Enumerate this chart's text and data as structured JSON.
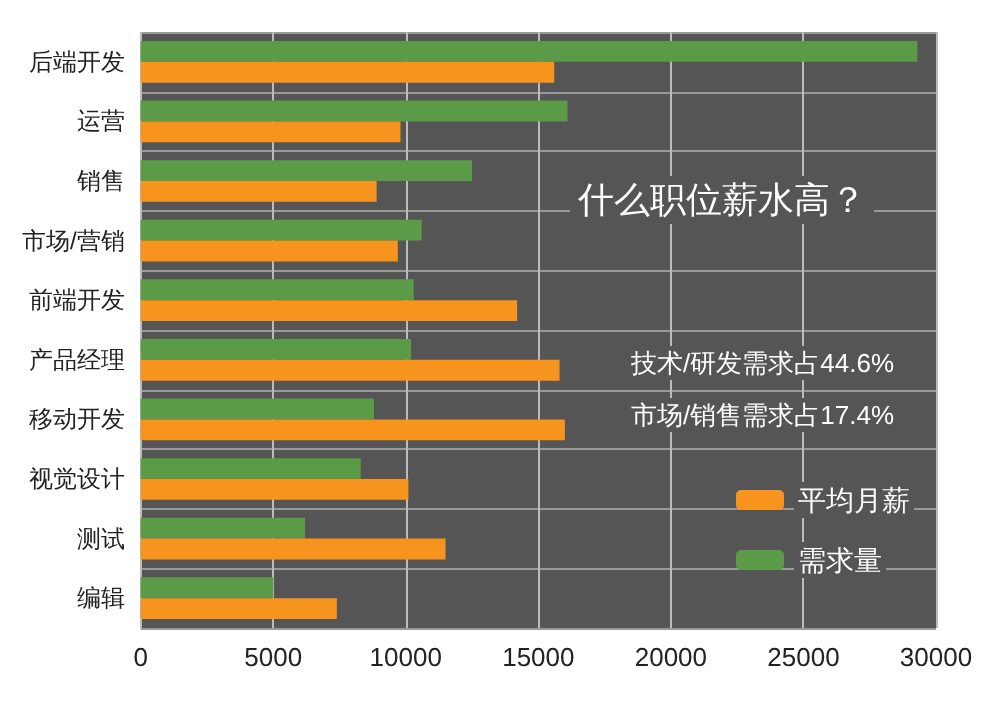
{
  "chart_data": {
    "type": "bar",
    "orientation": "horizontal",
    "title": "什么职位薪水高？",
    "categories": [
      "后端开发",
      "运营",
      "销售",
      "市场/营销",
      "前端开发",
      "产品经理",
      "移动开发",
      "视觉设计",
      "测试",
      "编辑"
    ],
    "series": [
      {
        "name": "需求量",
        "color": "#5b9a47",
        "values": [
          29300,
          16100,
          12500,
          10600,
          10300,
          10200,
          8800,
          8300,
          6200,
          5000
        ]
      },
      {
        "name": "平均月薪",
        "color": "#f7941d",
        "values": [
          15600,
          9800,
          8900,
          9700,
          14200,
          15800,
          16000,
          10100,
          11500,
          7400
        ]
      }
    ],
    "xlim": [
      0,
      30000
    ],
    "xticks": [
      0,
      5000,
      10000,
      15000,
      20000,
      25000,
      30000
    ],
    "grid": true,
    "legend": "bottom right",
    "annotations": [
      "技术/研发需求占44.6%",
      "市场/销售需求占17.4%"
    ]
  }
}
